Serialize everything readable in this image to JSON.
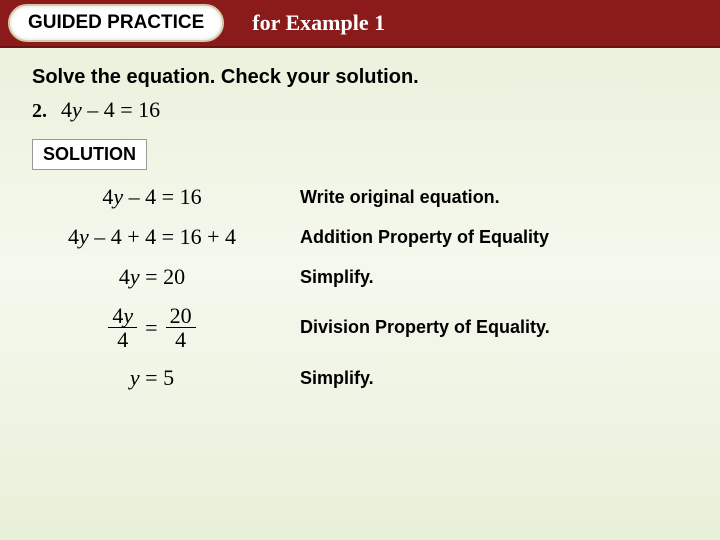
{
  "header": {
    "badge": "GUIDED PRACTICE",
    "title": "for Example 1"
  },
  "instruction": "Solve the equation. Check your solution.",
  "problem": {
    "number": "2.",
    "equation": "4y – 4 = 16"
  },
  "solution_label": "SOLUTION",
  "steps": [
    {
      "eq": "4y – 4 = 16",
      "expl": "Write original equation."
    },
    {
      "eq": "4y – 4 + 4 = 16 + 4",
      "expl": "Addition Property of Equality"
    },
    {
      "eq": "4y = 20",
      "expl": "Simplify."
    },
    {
      "eq_frac": {
        "left_num": "4y",
        "left_den": "4",
        "right_num": "20",
        "right_den": "4"
      },
      "expl": "Division Property of Equality."
    },
    {
      "eq": "y = 5",
      "expl": "Simplify."
    }
  ],
  "colors": {
    "header_bg": "#8b1a1a",
    "body_bg_top": "#e8f0d8",
    "badge_bg": "#ffffff",
    "text": "#000000"
  }
}
